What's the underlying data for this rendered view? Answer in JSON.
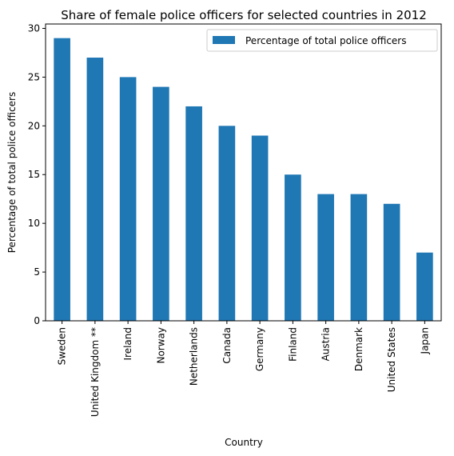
{
  "chart_data": {
    "type": "bar",
    "title": "Share of female police officers for selected countries in 2012",
    "xlabel": "Country",
    "ylabel": "Percentage of total police officers",
    "categories": [
      "Sweden",
      "United Kingdom **",
      "Ireland",
      "Norway",
      "Netherlands",
      "Canada",
      "Germany",
      "Finland",
      "Austria",
      "Denmark",
      "United States",
      "Japan"
    ],
    "series": [
      {
        "name": "Percentage of total police officers",
        "values": [
          29,
          27,
          25,
          24,
          22,
          20,
          19,
          15,
          13,
          13,
          12,
          7
        ],
        "color": "#1f77b4"
      }
    ],
    "ylim": [
      0,
      30.45
    ],
    "yticks": [
      0,
      5,
      10,
      15,
      20,
      25,
      30
    ],
    "grid": false,
    "legend_position": "top-right"
  }
}
